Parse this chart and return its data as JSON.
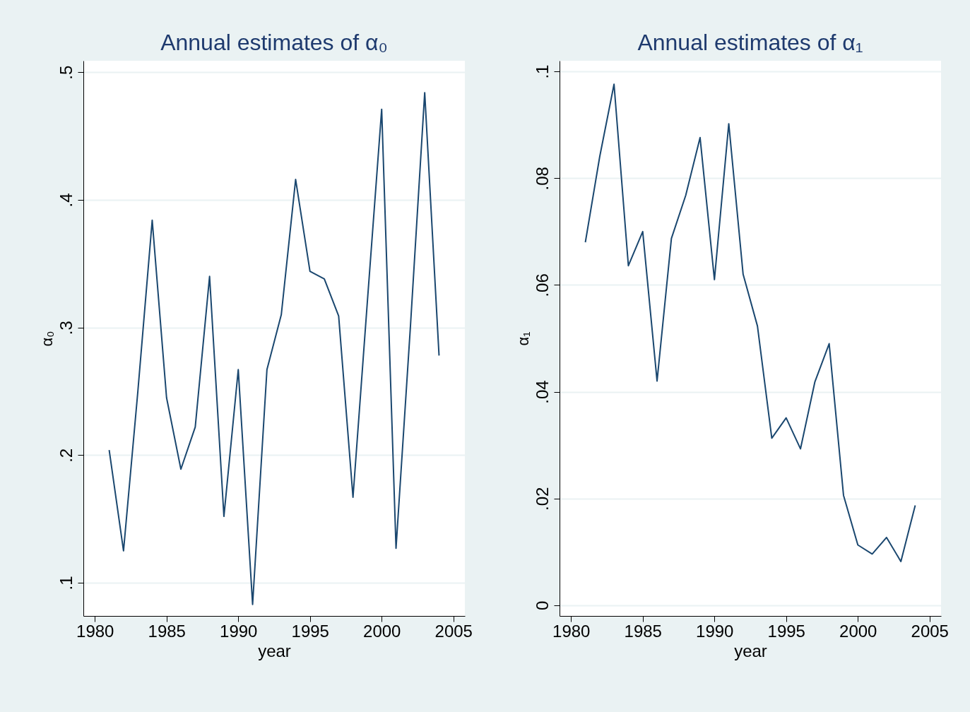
{
  "chart_data": [
    {
      "type": "line",
      "title": "Annual estimates of α₀",
      "xlabel": "year",
      "ylabel": "α₀",
      "x": [
        1981,
        1982,
        1983,
        1984,
        1985,
        1986,
        1987,
        1988,
        1989,
        1990,
        1991,
        1992,
        1993,
        1994,
        1995,
        1996,
        1997,
        1998,
        1999,
        2000,
        2001,
        2002,
        2003,
        2004
      ],
      "series": [
        {
          "color": "#1a476f",
          "values": [
            0.204,
            0.125,
            0.25,
            0.384,
            0.245,
            0.189,
            0.222,
            0.34,
            0.152,
            0.267,
            0.083,
            0.267,
            0.31,
            0.416,
            0.344,
            0.338,
            0.309,
            0.167,
            0.32,
            0.471,
            0.127,
            0.3,
            0.484,
            0.278
          ]
        }
      ],
      "xlim": [
        1979.2,
        2005.8
      ],
      "xticks": [
        1980,
        1985,
        1990,
        1995,
        2000,
        2005
      ],
      "ylim": [
        0.074,
        0.509
      ],
      "yticks": [
        {
          "value": 0.1,
          "label": ".1"
        },
        {
          "value": 0.2,
          "label": ".2"
        },
        {
          "value": 0.3,
          "label": ".3"
        },
        {
          "value": 0.4,
          "label": ".4"
        },
        {
          "value": 0.5,
          "label": ".5"
        }
      ],
      "grid": "y"
    },
    {
      "type": "line",
      "title": "Annual estimates of α₁",
      "xlabel": "year",
      "ylabel": "α₁",
      "x": [
        1981,
        1982,
        1983,
        1984,
        1985,
        1986,
        1987,
        1988,
        1989,
        1990,
        1991,
        1992,
        1993,
        1994,
        1995,
        1996,
        1997,
        1998,
        1999,
        2000,
        2001,
        2002,
        2003,
        2004
      ],
      "series": [
        {
          "color": "#1a476f",
          "values": [
            0.068,
            0.084,
            0.0976,
            0.0636,
            0.07,
            0.042,
            0.0687,
            0.0768,
            0.0876,
            0.061,
            0.0902,
            0.062,
            0.0523,
            0.0313,
            0.0351,
            0.0293,
            0.0418,
            0.049,
            0.0206,
            0.0113,
            0.0096,
            0.0127,
            0.0082,
            0.0187
          ]
        }
      ],
      "xlim": [
        1979.2,
        2005.8
      ],
      "xticks": [
        1980,
        1985,
        1990,
        1995,
        2000,
        2005
      ],
      "ylim": [
        -0.002,
        0.102
      ],
      "yticks": [
        0,
        {
          "value": 0.02,
          "label": ".02"
        },
        {
          "value": 0.04,
          "label": ".04"
        },
        {
          "value": 0.06,
          "label": ".06"
        },
        {
          "value": 0.08,
          "label": ".08"
        },
        {
          "value": 0.1,
          "label": ".1"
        }
      ],
      "grid": "y"
    }
  ]
}
